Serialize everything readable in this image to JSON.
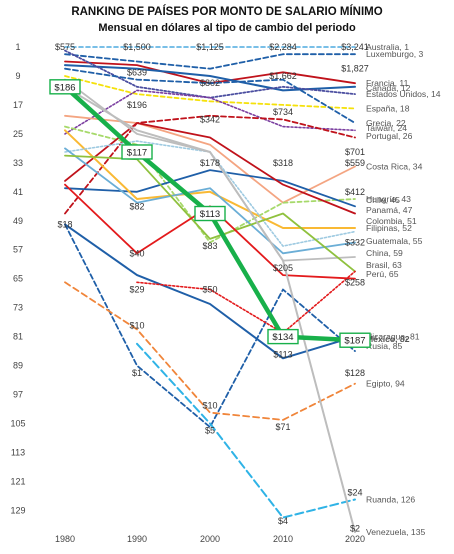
{
  "chart_data": {
    "type": "line",
    "title": "RANKING DE PAÍSES POR MONTO DE SALARIO MÍNIMO",
    "subtitle": "Mensual en dólares al tipo de cambio del periodo",
    "x": [
      "1980",
      "1990",
      "2000",
      "2010",
      "2020"
    ],
    "y_ticks": [
      1,
      9,
      17,
      25,
      33,
      41,
      49,
      57,
      65,
      73,
      81,
      89,
      97,
      105,
      113,
      121,
      129
    ],
    "ylim": [
      1,
      135
    ],
    "y_reversed": true,
    "grid": false,
    "series": [
      {
        "name": "Australia",
        "rank_label": "Australia, 1",
        "color": "#4daadf",
        "dash": "4,3",
        "width": 1.6,
        "ranks": [
          1,
          1,
          1,
          1,
          1
        ]
      },
      {
        "name": "Luxemburgo",
        "rank_label": "Luxemburgo, 3",
        "color": "#1f5fa8",
        "dash": "5,3",
        "width": 1.8,
        "ranks": [
          3,
          5,
          7,
          3,
          3
        ]
      },
      {
        "name": "Francia",
        "rank_label": "Francia, 11",
        "color": "#c0121b",
        "dash": "",
        "width": 1.8,
        "ranks": [
          5,
          6,
          11,
          8,
          11
        ]
      },
      {
        "name": "Canadá",
        "rank_label": "Canadá, 12",
        "color": "#1f5fa8",
        "dash": "",
        "width": 2.0,
        "ranks": [
          6,
          7,
          9,
          13,
          12
        ]
      },
      {
        "name": "Estados Unidos",
        "rank_label": "Estados Unidos, 14",
        "color": "#4b4ea0",
        "dash": "2,2",
        "width": 1.8,
        "ranks": [
          2,
          12,
          15,
          12,
          14
        ]
      },
      {
        "name": "España",
        "rank_label": "España, 18",
        "color": "#f5e10a",
        "dash": "4,3",
        "width": 1.8,
        "ranks": [
          9,
          14,
          16,
          17,
          18
        ]
      },
      {
        "name": "Grecia",
        "rank_label": "Grecia, 22",
        "color": "#1f5fa8",
        "dash": "5,3",
        "width": 1.8,
        "ranks": [
          7,
          10,
          11,
          10,
          22
        ]
      },
      {
        "name": "Taiwán",
        "rank_label": "Taiwán, 24",
        "color": "#7b3fa0",
        "dash": "2,2",
        "width": 1.6,
        "ranks": [
          25,
          13,
          15,
          23,
          24
        ]
      },
      {
        "name": "Portugal",
        "rank_label": "Portugal, 26",
        "color": "#c0121b",
        "dash": "5,3",
        "width": 1.8,
        "ranks": [
          47,
          22,
          20,
          21,
          26
        ]
      },
      {
        "name": "Costa Rica",
        "rank_label": "Costa Rica, 34",
        "color": "#f4a582",
        "dash": "",
        "width": 1.8,
        "ranks": [
          20,
          22,
          28,
          44,
          34
        ]
      },
      {
        "name": "Hungría",
        "rank_label": "Hungría, 43",
        "color": "#a6d96a",
        "dash": "4,3",
        "width": 1.8,
        "ranks": [
          23,
          28,
          55,
          44,
          43
        ]
      },
      {
        "name": "Chile",
        "rank_label": "Chile, 45",
        "color": "#1f5fa8",
        "dash": "",
        "width": 1.8,
        "ranks": [
          40,
          41,
          35,
          38,
          45
        ]
      },
      {
        "name": "Panamá",
        "rank_label": "Panamá, 47",
        "color": "#c0121b",
        "dash": "",
        "width": 1.8,
        "ranks": [
          38,
          22,
          26,
          39,
          47
        ]
      },
      {
        "name": "Colombia",
        "rank_label": "Colombia, 51",
        "color": "#f9b934",
        "dash": "",
        "width": 2.0,
        "ranks": [
          24,
          43,
          41,
          51,
          51
        ]
      },
      {
        "name": "Filipinas",
        "rank_label": "Filipinas, 52",
        "color": "#9ecae1",
        "dash": "2,2",
        "width": 1.6,
        "ranks": [
          30,
          27,
          30,
          56,
          52
        ]
      },
      {
        "name": "Guatemala",
        "rank_label": "Guatemala, 55",
        "color": "#6baed6",
        "dash": "",
        "width": 1.8,
        "ranks": [
          29,
          44,
          40,
          58,
          55
        ]
      },
      {
        "name": "China",
        "rank_label": "China, 59",
        "color": "#bdbdbd",
        "dash": "",
        "width": 1.8,
        "ranks": [
          10,
          25,
          30,
          60,
          59
        ]
      },
      {
        "name": "Brasil",
        "rank_label": "Brasil, 63",
        "color": "#8fc13e",
        "dash": "",
        "width": 1.8,
        "ranks": [
          31,
          32,
          54,
          47,
          63
        ]
      },
      {
        "name": "Perú",
        "rank_label": "Perú, 65",
        "color": "#e31a1c",
        "dash": "",
        "width": 1.8,
        "ranks": [
          39,
          58,
          45,
          64,
          65
        ]
      },
      {
        "name": "Nicaragua",
        "rank_label": "Nicaragua, 81",
        "color": "#1f5fa8",
        "dash": "",
        "width": 2.0,
        "ranks": [
          50,
          64,
          72,
          87,
          81
        ]
      },
      {
        "name": "México",
        "rank_label": "México, 82",
        "color": "#18b04a",
        "dash": "",
        "width": 4.5,
        "ranks": [
          12,
          30,
          47,
          81,
          82
        ]
      },
      {
        "name": "Rusia",
        "rank_label": "Rusia, 85",
        "color": "#1f5fa8",
        "dash": "5,3",
        "width": 1.8,
        "ranks": [
          50,
          89,
          106,
          68,
          85
        ]
      },
      {
        "name": "Egipto",
        "rank_label": "Egipto, 94",
        "color": "#f0853a",
        "dash": "6,4",
        "width": 1.8,
        "ranks": [
          66,
          79,
          102,
          104,
          94
        ]
      },
      {
        "name": "Ruanda",
        "rank_label": "Ruanda, 126",
        "color": "#2fb3e6",
        "dash": "8,4",
        "width": 2.0,
        "ranks": [
          null,
          83,
          105,
          131,
          126
        ]
      },
      {
        "name": "Venezuela",
        "rank_label": "Venezuela, 135",
        "color": "#bdbdbd",
        "dash": "",
        "width": 2.0,
        "ranks": [
          12,
          24,
          30,
          60,
          135
        ]
      },
      {
        "name": "",
        "rank_label": "",
        "color": "#e31a1c",
        "dash": "2,2",
        "width": 1.6,
        "ranks": [
          null,
          66,
          68,
          80,
          63
        ]
      }
    ],
    "value_labels": [
      {
        "text": "$575",
        "x": "1980",
        "rank": 1
      },
      {
        "text": "$1,500",
        "x": "1990",
        "rank": 1
      },
      {
        "text": "$1,125",
        "x": "2000",
        "rank": 1
      },
      {
        "text": "$2,284",
        "x": "2010",
        "rank": 1
      },
      {
        "text": "$3,241",
        "x": "2020",
        "rank": 1
      },
      {
        "text": "$639",
        "x": "1990",
        "rank": 8
      },
      {
        "text": "$802",
        "x": "2000",
        "rank": 11
      },
      {
        "text": "$1,662",
        "x": "2010",
        "rank": 9
      },
      {
        "text": "$1,827",
        "x": "2020",
        "rank": 7
      },
      {
        "text": "$196",
        "x": "1990",
        "rank": 17
      },
      {
        "text": "$342",
        "x": "2000",
        "rank": 21
      },
      {
        "text": "$734",
        "x": "2010",
        "rank": 19
      },
      {
        "text": "$701",
        "x": "2020",
        "rank": 30
      },
      {
        "text": "$178",
        "x": "2000",
        "rank": 33
      },
      {
        "text": "$318",
        "x": "2010",
        "rank": 33
      },
      {
        "text": "$559",
        "x": "2020",
        "rank": 33
      },
      {
        "text": "$412",
        "x": "2020",
        "rank": 41
      },
      {
        "text": "$82",
        "x": "1990",
        "rank": 45
      },
      {
        "text": "$18",
        "x": "1980",
        "rank": 50
      },
      {
        "text": "$83",
        "x": "2000",
        "rank": 56
      },
      {
        "text": "$40",
        "x": "1990",
        "rank": 58
      },
      {
        "text": "$332",
        "x": "2020",
        "rank": 55
      },
      {
        "text": "$205",
        "x": "2010",
        "rank": 62
      },
      {
        "text": "$258",
        "x": "2020",
        "rank": 66
      },
      {
        "text": "$29",
        "x": "1990",
        "rank": 68
      },
      {
        "text": "$50",
        "x": "2000",
        "rank": 68
      },
      {
        "text": "$10",
        "x": "1990",
        "rank": 78
      },
      {
        "text": "$113",
        "x": "2010",
        "rank": 86
      },
      {
        "text": "$1",
        "x": "1990",
        "rank": 91
      },
      {
        "text": "$128",
        "x": "2020",
        "rank": 91
      },
      {
        "text": "$10",
        "x": "2000",
        "rank": 100
      },
      {
        "text": "$71",
        "x": "2010",
        "rank": 106
      },
      {
        "text": "$5",
        "x": "2000",
        "rank": 107
      },
      {
        "text": "$24",
        "x": "2020",
        "rank": 124
      },
      {
        "text": "$4",
        "x": "2010",
        "rank": 132
      },
      {
        "text": "$2",
        "x": "2020",
        "rank": 134
      }
    ],
    "boxed_labels": [
      {
        "text": "$186",
        "x": "1980",
        "rank": 12
      },
      {
        "text": "$117",
        "x": "1990",
        "rank": 30
      },
      {
        "text": "$113",
        "x": "2000",
        "rank": 47
      },
      {
        "text": "$134",
        "x": "2010",
        "rank": 81
      },
      {
        "text": "$187",
        "x": "2020",
        "rank": 82
      }
    ],
    "highlight_label": "México, 82"
  }
}
